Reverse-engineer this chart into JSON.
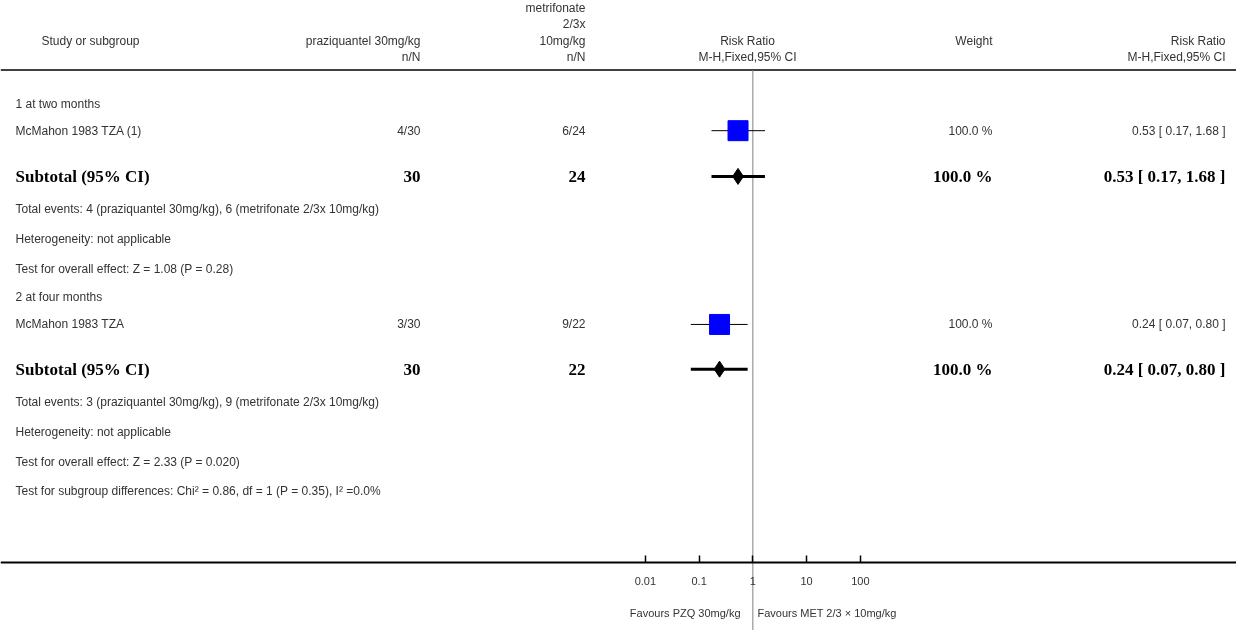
{
  "chart_data": {
    "type": "scatter",
    "orientation": "horizontal",
    "log": "x",
    "ylabel": "Study or subgroup",
    "categories": [
      "1 at two months",
      "McMahon 1983 TZA (1)",
      "Subtotal (95% CI)",
      "Total events: 4 (praziquantel 30mg/kg), 6 (metrifonate 2/3x 10mg/kg)",
      "Heterogeneity: not applicable",
      "Test for overall effect: Z = 1.08 (P = 0.28)",
      "2 at four months",
      "McMahon 1983 TZA",
      "Subtotal (95% CI)",
      "Total events: 3 (praziquantel 30mg/kg), 9 (metrifonate 2/3x 10mg/kg)",
      "Heterogeneity: not applicable",
      "Test for overall effect: Z = 2.33 (P = 0.020)",
      "Test for subgroup differences: Chi² = 0.86, df = 1 (P = 0.35), I² =0.0%"
    ],
    "series": [
      {
        "marker": "square",
        "color": "#0000ff",
        "values": [
          null,
          0.53,
          null,
          null,
          null,
          null,
          null,
          0.24,
          null,
          null,
          null,
          null,
          null
        ],
        "errors": [
          null,
          [
            0.17,
            1.68
          ],
          null,
          null,
          null,
          null,
          null,
          [
            0.07,
            0.8
          ],
          null,
          null,
          null,
          null,
          null
        ]
      },
      {
        "marker": "diamond",
        "color": "#000000",
        "values": [
          null,
          null,
          0.53,
          null,
          null,
          null,
          null,
          null,
          0.24,
          null,
          null,
          null,
          null
        ],
        "errors": [
          null,
          null,
          [
            0.17,
            1.68
          ],
          null,
          null,
          null,
          null,
          null,
          [
            0.07,
            0.8
          ],
          null,
          null,
          null,
          null
        ]
      }
    ],
    "xlim": [
      1e-14,
      1000000000.0
    ],
    "xticks": [
      0.01,
      0.1,
      1,
      10,
      100
    ],
    "ref_lines": [
      {
        "axis": "x",
        "value": 1,
        "color": "#808080"
      }
    ],
    "annotations": [
      "praziquantel 30mg/kg",
      "metrifonate\n2/3x\n10mg/kg",
      "Risk Ratio",
      "Weight",
      "Risk Ratio",
      "n/N",
      "n/N",
      "M-H,Fixed,95% CI",
      "M-H,Fixed,95% CI",
      "4/30",
      "6/24",
      "100.0 %",
      "0.53 [ 0.17, 1.68 ]",
      "30",
      "24",
      "100.0 %",
      "0.53 [ 0.17, 1.68 ]",
      "3/30",
      "9/22",
      "100.0 %",
      "0.24 [ 0.07, 0.80 ]",
      "30",
      "22",
      "100.0 %",
      "0.24 [ 0.07, 0.80 ]",
      "Favours PZQ 30mg/kg",
      "Favours MET 2/3 × 10mg/kg"
    ]
  }
}
